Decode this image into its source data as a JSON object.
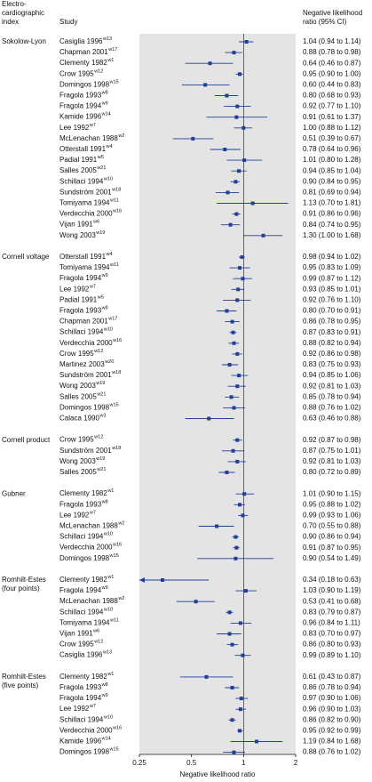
{
  "chart_data": {
    "type": "forest",
    "index_header": [
      "Electro-",
      "cardiographic",
      "index"
    ],
    "study_header": "Study",
    "ratio_header": [
      "Negative likelihood",
      "ratio (95% CI)"
    ],
    "xlabel": "Negative likelihood ratio",
    "xlim": [
      0.25,
      2
    ],
    "xticks": [
      0.25,
      0.5,
      1,
      2
    ],
    "log_x": true,
    "color": "#1f3f99",
    "band_color": "#e4e4e4",
    "groups": [
      {
        "name": [
          "Sokolow-Lyon"
        ],
        "rows": [
          {
            "study": "Casiglia 1996",
            "ref": "w13",
            "value": 1.04,
            "lo": 0.94,
            "hi": 1.14,
            "label": "1.04 (0.94 to 1.14)"
          },
          {
            "study": "Chapman 2001",
            "ref": "w17",
            "value": 0.88,
            "lo": 0.78,
            "hi": 0.98,
            "label": "0.88 (0.78 to 0.98)"
          },
          {
            "study": "Clementy 1982",
            "ref": "w1",
            "value": 0.64,
            "lo": 0.46,
            "hi": 0.87,
            "label": "0.64 (0.46 to 0.87)"
          },
          {
            "study": "Crow 1995",
            "ref": "w12",
            "value": 0.95,
            "lo": 0.9,
            "hi": 1.0,
            "label": "0.95 (0.90 to 1.00)"
          },
          {
            "study": "Domingos 1998",
            "ref": "w15",
            "value": 0.6,
            "lo": 0.44,
            "hi": 0.83,
            "label": "0.60 (0.44 to 0.83)"
          },
          {
            "study": "Fragola 1993",
            "ref": "w8",
            "value": 0.8,
            "lo": 0.68,
            "hi": 0.93,
            "label": "0.80 (0.68 to 0.93)"
          },
          {
            "study": "Fragola 1994",
            "ref": "w9",
            "value": 0.92,
            "lo": 0.77,
            "hi": 1.1,
            "label": "0.92 (0.77 to 1.10)"
          },
          {
            "study": "Kamide 1996",
            "ref": "w14",
            "value": 0.91,
            "lo": 0.61,
            "hi": 1.37,
            "label": "0.91 (0.61 to 1.37)"
          },
          {
            "study": "Lee 1992",
            "ref": "w7",
            "value": 1.0,
            "lo": 0.88,
            "hi": 1.12,
            "label": "1.00 (0.88 to 1.12)"
          },
          {
            "study": "McLenachan 1988",
            "ref": "w2",
            "value": 0.51,
            "lo": 0.39,
            "hi": 0.67,
            "label": "0.51 (0.39 to 0.67)"
          },
          {
            "study": "Otterstall 1991",
            "ref": "w4",
            "value": 0.78,
            "lo": 0.64,
            "hi": 0.96,
            "label": "0.78 (0.64 to 0.96)"
          },
          {
            "study": "Padial 1991",
            "ref": "w5",
            "value": 1.01,
            "lo": 0.8,
            "hi": 1.28,
            "label": "1.01 (0.80 to 1.28)"
          },
          {
            "study": "Salles 2005",
            "ref": "w21",
            "value": 0.94,
            "lo": 0.85,
            "hi": 1.04,
            "label": "0.94 (0.85 to 1.04)"
          },
          {
            "study": "Schillaci 1994",
            "ref": "w10",
            "value": 0.9,
            "lo": 0.84,
            "hi": 0.95,
            "label": "0.90 (0.84 to 0.95)"
          },
          {
            "study": "Sundström 2001",
            "ref": "w18",
            "value": 0.81,
            "lo": 0.69,
            "hi": 0.94,
            "label": "0.81 (0.69 to 0.94)"
          },
          {
            "study": "Tomiyama 1994",
            "ref": "w11",
            "value": 1.13,
            "lo": 0.7,
            "hi": 1.81,
            "label": "1.13 (0.70 to 1.81)"
          },
          {
            "study": "Verdecchia 2000",
            "ref": "w16",
            "value": 0.91,
            "lo": 0.86,
            "hi": 0.96,
            "label": "0.91 (0.86 to 0.96)"
          },
          {
            "study": "Vijan 1991",
            "ref": "w6",
            "value": 0.84,
            "lo": 0.74,
            "hi": 0.95,
            "label": "0.84 (0.74 to 0.95)"
          },
          {
            "study": "Wong 2003",
            "ref": "w19",
            "value": 1.3,
            "lo": 1.0,
            "hi": 1.68,
            "label": "1.30 (1.00 to 1.68)"
          }
        ]
      },
      {
        "name": [
          "Cornell voltage"
        ],
        "rows": [
          {
            "study": "Otterstall 1991",
            "ref": "w4",
            "value": 0.98,
            "lo": 0.94,
            "hi": 1.02,
            "label": "0.98 (0.94 to 1.02)"
          },
          {
            "study": "Tomiyama 1994",
            "ref": "w11",
            "value": 0.95,
            "lo": 0.83,
            "hi": 1.09,
            "label": "0.95 (0.83 to 1.09)"
          },
          {
            "study": "Fragola 1994",
            "ref": "w9",
            "value": 0.99,
            "lo": 0.87,
            "hi": 1.12,
            "label": "0.99 (0.87 to 1.12)"
          },
          {
            "study": "Lee 1992",
            "ref": "w7",
            "value": 0.93,
            "lo": 0.85,
            "hi": 1.01,
            "label": "0.93 (0.85 to 1.01)"
          },
          {
            "study": "Padial 1991",
            "ref": "w5",
            "value": 0.92,
            "lo": 0.76,
            "hi": 1.1,
            "label": "0.92 (0.76 to 1.10)"
          },
          {
            "study": "Fragola 1993",
            "ref": "w8",
            "value": 0.8,
            "lo": 0.7,
            "hi": 0.91,
            "label": "0.80 (0.70 to 0.91)"
          },
          {
            "study": "Chapman 2001",
            "ref": "w17",
            "value": 0.86,
            "lo": 0.78,
            "hi": 0.95,
            "label": "0.86 (0.78 to 0.95)"
          },
          {
            "study": "Schillaci 1994",
            "ref": "w10",
            "value": 0.87,
            "lo": 0.83,
            "hi": 0.91,
            "label": "0.87 (0.83 to 0.91)"
          },
          {
            "study": "Verdecchia 2000",
            "ref": "w16",
            "value": 0.88,
            "lo": 0.82,
            "hi": 0.94,
            "label": "0.88 (0.82 to 0.94)"
          },
          {
            "study": "Crow 1995",
            "ref": "w12",
            "value": 0.92,
            "lo": 0.86,
            "hi": 0.98,
            "label": "0.92 (0.86 to 0.98)"
          },
          {
            "study": "Martinez 2003",
            "ref": "w20",
            "value": 0.83,
            "lo": 0.75,
            "hi": 0.93,
            "label": "0.83 (0.75 to 0.93)"
          },
          {
            "study": "Sundström 2001",
            "ref": "w18",
            "value": 0.94,
            "lo": 0.85,
            "hi": 1.06,
            "label": "0.94 (0.85 to 1.06)"
          },
          {
            "study": "Wong 2003",
            "ref": "w19",
            "value": 0.92,
            "lo": 0.81,
            "hi": 1.03,
            "label": "0.92 (0.81 to 1.03)"
          },
          {
            "study": "Salles 2005",
            "ref": "w21",
            "value": 0.85,
            "lo": 0.78,
            "hi": 0.94,
            "label": "0.85 (0.78 to 0.94)"
          },
          {
            "study": "Domingos 1998",
            "ref": "w15",
            "value": 0.88,
            "lo": 0.76,
            "hi": 1.02,
            "label": "0.88 (0.76 to 1.02)"
          },
          {
            "study": "Calaca 1990",
            "ref": "w3",
            "value": 0.63,
            "lo": 0.46,
            "hi": 0.88,
            "label": "0.63 (0.46 to 0.88)"
          }
        ]
      },
      {
        "name": [
          "Cornell product"
        ],
        "rows": [
          {
            "study": "Crow 1995",
            "ref": "w12",
            "value": 0.92,
            "lo": 0.87,
            "hi": 0.98,
            "label": "0.92 (0.87 to 0.98)"
          },
          {
            "study": "Sundström 2001",
            "ref": "w18",
            "value": 0.87,
            "lo": 0.75,
            "hi": 1.01,
            "label": "0.87 (0.75 to 1.01)"
          },
          {
            "study": "Wong 2003",
            "ref": "w19",
            "value": 0.92,
            "lo": 0.81,
            "hi": 1.03,
            "label": "0.92 (0.81 to 1.03)"
          },
          {
            "study": "Salles 2005",
            "ref": "w21",
            "value": 0.8,
            "lo": 0.72,
            "hi": 0.89,
            "label": "0.80 (0.72 to 0.89)"
          }
        ]
      },
      {
        "name": [
          "Gubner"
        ],
        "rows": [
          {
            "study": "Clementy 1982",
            "ref": "w1",
            "value": 1.01,
            "lo": 0.9,
            "hi": 1.15,
            "label": "1.01 (0.90 to 1.15)"
          },
          {
            "study": "Fragola 1993",
            "ref": "w8",
            "value": 0.95,
            "lo": 0.88,
            "hi": 1.02,
            "label": "0.95 (0.88 to 1.02)"
          },
          {
            "study": "Lee 1992",
            "ref": "w7",
            "value": 0.99,
            "lo": 0.93,
            "hi": 1.06,
            "label": "0.99 (0.93 to 1.06)"
          },
          {
            "study": "McLenachan 1988",
            "ref": "w2",
            "value": 0.7,
            "lo": 0.55,
            "hi": 0.88,
            "label": "0.70 (0.55 to 0.88)"
          },
          {
            "study": "Schillaci 1994",
            "ref": "w10",
            "value": 0.9,
            "lo": 0.86,
            "hi": 0.94,
            "label": "0.90 (0.86 to 0.94)"
          },
          {
            "study": "Verdecchia 2000",
            "ref": "w16",
            "value": 0.91,
            "lo": 0.87,
            "hi": 0.95,
            "label": "0.91 (0.87 to 0.95)"
          },
          {
            "study": "Domingos 1998",
            "ref": "w15",
            "value": 0.9,
            "lo": 0.54,
            "hi": 1.49,
            "label": "0.90 (0.54 to 1.49)"
          }
        ]
      },
      {
        "name": [
          "Romhilt-Estes",
          "(four points)"
        ],
        "rows": [
          {
            "study": "Clementy 1982",
            "ref": "w1",
            "value": 0.34,
            "lo": 0.18,
            "hi": 0.63,
            "label": "0.34 (0.18 to 0.63)"
          },
          {
            "study": "Fragola 1994",
            "ref": "w9",
            "value": 1.03,
            "lo": 0.9,
            "hi": 1.19,
            "label": "1.03 (0.90 to 1.19)"
          },
          {
            "study": "McLenachan 1988",
            "ref": "w2",
            "value": 0.53,
            "lo": 0.41,
            "hi": 0.68,
            "label": "0.53 (0.41 to 0.68)"
          },
          {
            "study": "Schillaci 1994",
            "ref": "w10",
            "value": 0.83,
            "lo": 0.79,
            "hi": 0.87,
            "label": "0.83 (0.79 to 0.87)"
          },
          {
            "study": "Tomiyama 1994",
            "ref": "w11",
            "value": 0.96,
            "lo": 0.84,
            "hi": 1.11,
            "label": "0.96 (0.84 to 1.11)"
          },
          {
            "study": "Vijan 1991",
            "ref": "w6",
            "value": 0.83,
            "lo": 0.7,
            "hi": 0.97,
            "label": "0.83 (0.70 to 0.97)"
          },
          {
            "study": "Crow 1995",
            "ref": "w12",
            "value": 0.86,
            "lo": 0.8,
            "hi": 0.93,
            "label": "0.86 (0.80 to 0.93)"
          },
          {
            "study": "Casiglia 1996",
            "ref": "w13",
            "value": 0.99,
            "lo": 0.89,
            "hi": 1.1,
            "label": "0.99 (0.89 to 1.10)"
          }
        ]
      },
      {
        "name": [
          "Romhilt-Estes",
          "(five points)"
        ],
        "rows": [
          {
            "study": "Clementy 1982",
            "ref": "w1",
            "value": 0.61,
            "lo": 0.43,
            "hi": 0.87,
            "label": "0.61 (0.43 to 0.87)"
          },
          {
            "study": "Fragola 1993",
            "ref": "w8",
            "value": 0.86,
            "lo": 0.78,
            "hi": 0.94,
            "label": "0.86 (0.78 to 0.94)"
          },
          {
            "study": "Fragola 1994",
            "ref": "w9",
            "value": 0.97,
            "lo": 0.9,
            "hi": 1.06,
            "label": "0.97 (0.90 to 1.06)"
          },
          {
            "study": "Lee 1992",
            "ref": "w7",
            "value": 0.96,
            "lo": 0.9,
            "hi": 1.03,
            "label": "0.96 (0.90 to 1.03)"
          },
          {
            "study": "Schillaci 1994",
            "ref": "w10",
            "value": 0.86,
            "lo": 0.82,
            "hi": 0.9,
            "label": "0.86 (0.82 to 0.90)"
          },
          {
            "study": "Verdecchia 2000",
            "ref": "w16",
            "value": 0.95,
            "lo": 0.92,
            "hi": 0.99,
            "label": "0.95 (0.92 to 0.99)"
          },
          {
            "study": "Kamide 1996",
            "ref": "w14",
            "value": 1.19,
            "lo": 0.84,
            "hi": 1.68,
            "label": "1.19 (0.84 to 1.68)"
          },
          {
            "study": "Domingos 1998",
            "ref": "w15",
            "value": 0.88,
            "lo": 0.76,
            "hi": 1.02,
            "label": "0.88 (0.76 to 1.02)"
          }
        ]
      }
    ]
  }
}
